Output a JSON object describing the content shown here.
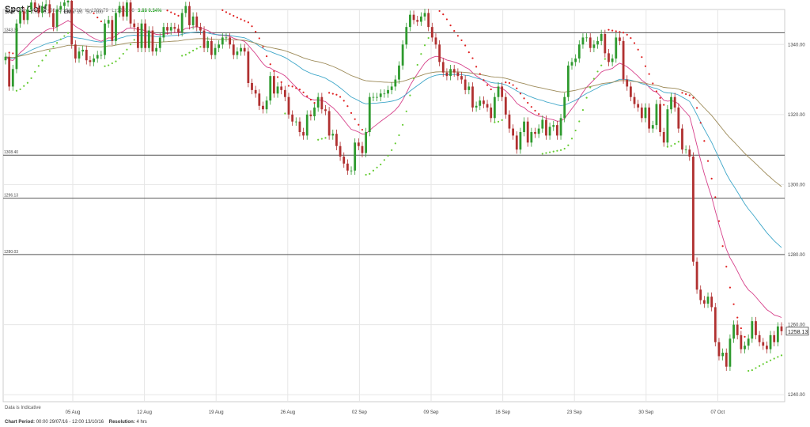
{
  "header": {
    "title": "Spot Gold",
    "time": "08:45 13/10/16",
    "high": "H: 1261.79",
    "low": "L: 1253.06",
    "change": "3.88 0.34%"
  },
  "indicators": {
    "sar_label": "SAR",
    "sar_params": [
      "0.02",
      "0.02",
      "0.2"
    ],
    "ema_label": "EMA",
    "ema_params": [
      "20",
      "50",
      "100"
    ]
  },
  "footer": {
    "disclaimer": "Data is Indicative",
    "period_label": "Chart Period:",
    "period_value": "00:00 29/07/16 - 12:00 13/10/16",
    "resolution_label": "Resolution:",
    "resolution_value": "4 hrs"
  },
  "colors": {
    "up": "#2e9a2e",
    "down": "#b03030",
    "sar_up": "#66cc33",
    "sar_down": "#e02020",
    "ema20": "#d6408a",
    "ema50": "#3fa7c9",
    "ema100": "#9c8a58",
    "hline": "#555555",
    "grid": "#e6e6e6"
  },
  "chart_data": {
    "type": "candlestick",
    "title": "Spot Gold",
    "ylim": [
      1238,
      1350
    ],
    "y_ticks": [
      1240,
      1260,
      1280,
      1300,
      1320,
      1340
    ],
    "y_tick_labels": [
      "1240.00",
      "1260.00",
      "1280.00",
      "1300.00",
      "1320.00",
      "1340.00"
    ],
    "x_ticks": [
      "05 Aug",
      "12 Aug",
      "19 Aug",
      "26 Aug",
      "02 Sep",
      "09 Sep",
      "16 Sep",
      "23 Sep",
      "30 Sep",
      "07 Oct"
    ],
    "last_price": "1258.13",
    "horizontal_levels": [
      {
        "value": 1343.38,
        "label": "1343.38"
      },
      {
        "value": 1308.4,
        "label": "1308.40"
      },
      {
        "value": 1296.13,
        "label": "1296.13"
      },
      {
        "value": 1280.03,
        "label": "1280.03"
      }
    ],
    "closes": [
      1336.5,
      1328,
      1333,
      1346,
      1349.5,
      1347,
      1350,
      1352,
      1350.5,
      1349,
      1351,
      1351.5,
      1349,
      1345,
      1350,
      1351,
      1352,
      1352.5,
      1340,
      1336,
      1338,
      1338.5,
      1335.5,
      1335,
      1336,
      1337,
      1337,
      1346,
      1347,
      1341,
      1349,
      1351,
      1348,
      1352,
      1346,
      1345,
      1339,
      1346,
      1339,
      1344,
      1338,
      1339,
      1342,
      1345,
      1344,
      1345,
      1344.5,
      1343.5,
      1349,
      1351,
      1345.5,
      1348,
      1345,
      1344,
      1339,
      1341,
      1337,
      1339,
      1340,
      1342,
      1342,
      1340,
      1337,
      1338,
      1339,
      1338,
      1329,
      1327,
      1326,
      1322.5,
      1321.5,
      1324,
      1331,
      1326,
      1328,
      1327,
      1325,
      1320,
      1318,
      1318,
      1315,
      1314,
      1320,
      1319.5,
      1322,
      1325,
      1321.5,
      1321,
      1314,
      1314.5,
      1311,
      1308,
      1306,
      1304,
      1304,
      1312,
      1311,
      1309,
      1315,
      1325,
      1325,
      1325,
      1326,
      1326,
      1327,
      1328,
      1330,
      1334,
      1340,
      1345,
      1348.5,
      1347,
      1346.5,
      1348,
      1349,
      1345,
      1342,
      1340,
      1335,
      1332,
      1331,
      1333,
      1332,
      1331,
      1330,
      1327,
      1328,
      1322,
      1322.5,
      1324,
      1323,
      1322,
      1319,
      1325,
      1328,
      1325,
      1320,
      1316,
      1314,
      1310,
      1315,
      1318,
      1312,
      1315,
      1314.5,
      1316,
      1318.5,
      1314,
      1316.5,
      1317,
      1314,
      1319,
      1325,
      1334,
      1335,
      1336,
      1340,
      1342,
      1342,
      1339,
      1340,
      1341,
      1343,
      1337.5,
      1335,
      1336,
      1342,
      1341,
      1330,
      1328,
      1325,
      1323,
      1322,
      1319,
      1322,
      1316,
      1317,
      1323,
      1315,
      1312,
      1321.5,
      1325,
      1322,
      1316,
      1310,
      1310,
      1308,
      1278,
      1270,
      1267,
      1266,
      1268,
      1265,
      1255,
      1251,
      1252,
      1248,
      1256,
      1260,
      1257,
      1253,
      1254,
      1256,
      1261,
      1257,
      1255,
      1254,
      1253,
      1257,
      1255,
      1259.5,
      1258.13
    ]
  }
}
